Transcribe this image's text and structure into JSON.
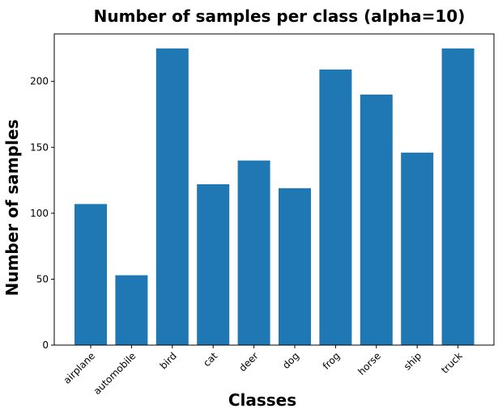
{
  "chart_data": {
    "type": "bar",
    "title": "Number of samples per class (alpha=10)",
    "xlabel": "Classes",
    "ylabel": "Number of samples",
    "categories": [
      "airplane",
      "automobile",
      "bird",
      "cat",
      "deer",
      "dog",
      "frog",
      "horse",
      "ship",
      "truck"
    ],
    "values": [
      107,
      53,
      225,
      122,
      140,
      119,
      209,
      190,
      146,
      225
    ],
    "ylim": [
      0,
      236
    ],
    "yticks": [
      0,
      50,
      100,
      150,
      200
    ],
    "color": "#1f77b4",
    "grid": false
  }
}
